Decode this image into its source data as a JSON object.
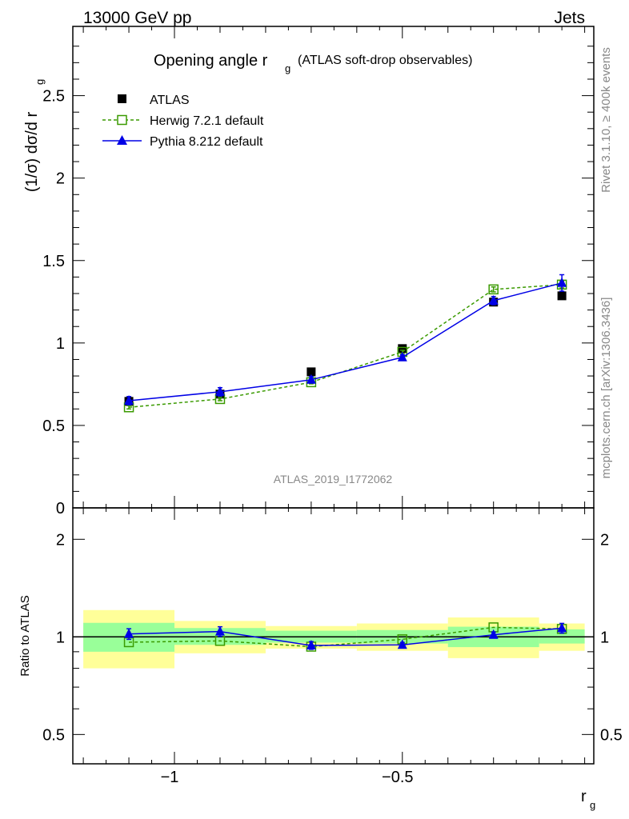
{
  "header": {
    "left": "13000 GeV pp",
    "right": "Jets"
  },
  "side": {
    "rivet": "Rivet 3.1.10, ≥ 400k events",
    "mcplots": "mcplots.cern.ch [arXiv:1306.3436]"
  },
  "watermark": "ATLAS_2019_I1772062",
  "chart_data": {
    "type": "line",
    "title": "Opening angle r",
    "title_sub": "g",
    "title_suffix": "(ATLAS soft-drop observables)",
    "ylabel": "(1/σ) dσ/d r",
    "ylabel_sub": "g",
    "xlabel": "r",
    "xlabel_sub": "g",
    "xlim": [
      -1.223,
      -0.08
    ],
    "ylim": [
      0,
      2.92
    ],
    "x": [
      -1.1,
      -0.9,
      -0.7,
      -0.5,
      -0.3,
      -0.15
    ],
    "bin_edges": [
      -1.2,
      -1.0,
      -0.8,
      -0.6,
      -0.4,
      -0.2,
      -0.1
    ],
    "x_ticks": [
      {
        "v": -1,
        "label": "−1"
      },
      {
        "v": -0.5,
        "label": "−0.5"
      }
    ],
    "y_ticks": [
      {
        "v": 0,
        "label": "0"
      },
      {
        "v": 0.5,
        "label": "0.5"
      },
      {
        "v": 1,
        "label": "1"
      },
      {
        "v": 1.5,
        "label": "1.5"
      },
      {
        "v": 2,
        "label": "2"
      },
      {
        "v": 2.5,
        "label": "2.5"
      }
    ],
    "series": [
      {
        "name": "ATLAS",
        "color": "#000000",
        "marker": "filled-square",
        "values": [
          0.646,
          0.69,
          0.825,
          0.966,
          1.248,
          1.286
        ]
      },
      {
        "name": "Herwig 7.2.1 default",
        "color": "#3a9a00",
        "marker": "open-square",
        "dashed": true,
        "values": [
          0.61,
          0.66,
          0.762,
          0.946,
          1.325,
          1.354
        ],
        "errors": [
          0.01,
          0.01,
          0.01,
          0.01,
          0.015,
          0.02
        ]
      },
      {
        "name": "Pythia 8.212 default",
        "color": "#0000e6",
        "marker": "triangle",
        "values": [
          0.65,
          0.704,
          0.777,
          0.913,
          1.257,
          1.364
        ],
        "errors": [
          0.025,
          0.025,
          0.02,
          0.015,
          0.025,
          0.05
        ]
      }
    ],
    "ratio": {
      "ylabel": "Ratio to ATLAS",
      "scale": "log",
      "ylim": [
        0.406,
        2.5
      ],
      "y_ticks": [
        {
          "v": 0.5,
          "label": "0.5"
        },
        {
          "v": 1,
          "label": "1"
        },
        {
          "v": 2,
          "label": "2"
        }
      ],
      "band_total": {
        "color": "#ffff99",
        "low": [
          0.8,
          0.89,
          0.92,
          0.906,
          0.86,
          0.906
        ],
        "high": [
          1.21,
          1.12,
          1.08,
          1.1,
          1.148,
          1.1
        ]
      },
      "band_stat": {
        "color": "#99ff99",
        "low": [
          0.9,
          0.945,
          0.96,
          0.954,
          0.93,
          0.954
        ],
        "high": [
          1.105,
          1.065,
          1.045,
          1.05,
          1.075,
          1.055
        ]
      },
      "herwig": [
        0.963,
        0.972,
        0.933,
        0.983,
        1.07,
        1.058
      ],
      "pythia": [
        1.021,
        1.039,
        0.941,
        0.945,
        1.015,
        1.064
      ]
    }
  }
}
